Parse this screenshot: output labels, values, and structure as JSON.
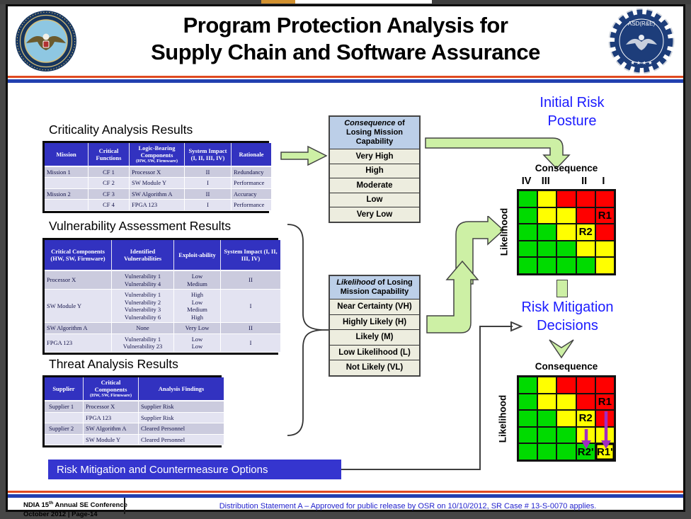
{
  "chrome": {
    "top_accent_color": "#D2912F"
  },
  "header": {
    "title_line1": "Program Protection Analysis for",
    "title_line2": "Supply Chain and Software Assurance",
    "right_logo_text": "ASD(R&E)"
  },
  "sections": {
    "criticality": {
      "heading": "Criticality Analysis Results",
      "table": {
        "headers": [
          "Mission",
          "Critical Functions",
          "Logic-Bearing Components",
          "System Impact (I, II, III, IV)",
          "Rationale"
        ],
        "header_subs": {
          "2": "(HW, SW, Firmware)"
        },
        "rows": [
          [
            "Mission 1",
            "CF 1",
            "Processor X",
            "II",
            "Redundancy"
          ],
          [
            "",
            "CF 2",
            "SW Module Y",
            "I",
            "Performance"
          ],
          [
            "Mission 2",
            "CF 3",
            "SW Algorithm A",
            "II",
            "Accuracy"
          ],
          [
            "",
            "CF 4",
            "FPGA 123",
            "I",
            "Performance"
          ]
        ]
      }
    },
    "vulnerability": {
      "heading": "Vulnerability Assessment Results",
      "table": {
        "headers": [
          "Critical Components (HW, SW, Firmware)",
          "Identified Vulnerabilities",
          "Exploit-ability",
          "System Impact (I, II, III, IV)"
        ],
        "rows": [
          [
            "Processor X",
            "Vulnerability 1\nVulnerability 4",
            "Low\nMedium",
            "II"
          ],
          [
            "SW Module Y",
            "Vulnerability 1\nVulnerability 2\nVulnerability 3\nVulnerability 6",
            "High\nLow\nMedium\nHigh",
            "I"
          ],
          [
            "SW Algorithm A",
            "None",
            "Very Low",
            "II"
          ],
          [
            "FPGA 123",
            "Vulnerability 1\nVulnerability 23",
            "Low\nLow",
            "I"
          ]
        ]
      }
    },
    "threat": {
      "heading": "Threat Analysis Results",
      "table": {
        "headers": [
          "Supplier",
          "Critical Components",
          "Analysis Findings"
        ],
        "header_subs": {
          "1": "(HW, SW, Firmware)"
        },
        "rows": [
          [
            "Supplier 1",
            "Processor X",
            "Supplier Risk"
          ],
          [
            "",
            "FPGA 123",
            "Supplier Risk"
          ],
          [
            "Supplier 2",
            "SW Algorithm A",
            "Cleared Personnel"
          ],
          [
            "",
            "SW Module Y",
            "Cleared Personnel"
          ]
        ]
      }
    }
  },
  "consequence_box": {
    "header_italic": "Consequence",
    "header_rest": " of Losing Mission Capability",
    "rows": [
      "Very High",
      "High",
      "Moderate",
      "Low",
      "Very Low"
    ]
  },
  "likelihood_box": {
    "header_italic": "Likelihood",
    "header_rest": " of Losing Mission Capability",
    "rows": [
      "Near Certainty (VH)",
      "Highly Likely (H)",
      "Likely (M)",
      "Low Likelihood (L)",
      "Not Likely (VL)"
    ]
  },
  "flow_labels": {
    "initial_risk_line1": "Initial Risk",
    "initial_risk_line2": "Posture",
    "mitigation_line1": "Risk Mitigation",
    "mitigation_line2": "Decisions"
  },
  "matrices": {
    "initial": {
      "consequence_label": "Consequence",
      "likelihood_label": "Likelihood",
      "col_labels": [
        "IV",
        "III",
        "",
        "II",
        "I"
      ],
      "cells": [
        [
          "G",
          "Y",
          "R",
          "R",
          "R"
        ],
        [
          "G",
          "Y",
          "Y",
          "R",
          "R"
        ],
        [
          "G",
          "G",
          "Y",
          "Y",
          "R"
        ],
        [
          "G",
          "G",
          "G",
          "Y",
          "Y"
        ],
        [
          "G",
          "G",
          "G",
          "G",
          "Y"
        ]
      ],
      "markers": [
        {
          "row": 1,
          "col": 4,
          "text": "R1"
        },
        {
          "row": 2,
          "col": 3,
          "text": "R2"
        }
      ]
    },
    "mitigated": {
      "consequence_label": "Consequence",
      "likelihood_label": "Likelihood",
      "cells": [
        [
          "G",
          "Y",
          "R",
          "R",
          "R"
        ],
        [
          "G",
          "Y",
          "Y",
          "R",
          "R"
        ],
        [
          "G",
          "G",
          "Y",
          "Y",
          "R"
        ],
        [
          "G",
          "G",
          "G",
          "Y",
          "Y"
        ],
        [
          "G",
          "G",
          "G",
          "G",
          "Y"
        ]
      ],
      "markers": [
        {
          "row": 1,
          "col": 4,
          "text": "R1"
        },
        {
          "row": 2,
          "col": 3,
          "text": "R2"
        },
        {
          "row": 4,
          "col": 3,
          "text": "R2'"
        },
        {
          "row": 4,
          "col": 4,
          "text": "R1'",
          "box": true
        }
      ],
      "mitigation_arrows": [
        {
          "from": "R2",
          "to": "R2'"
        },
        {
          "from": "R1",
          "to": "R1'"
        }
      ]
    }
  },
  "banner": {
    "label": "Risk Mitigation and Countermeasure Options"
  },
  "footer": {
    "conf_pre": "NDIA 15",
    "conf_sup": "th",
    "conf_post": " Annual SE Conference",
    "date_page": "October  2012 | Page-14",
    "distribution": "Distribution Statement A – Approved for public release by OSR on 10/10/2012, SR Case # 13-S-0070 applies."
  },
  "colors": {
    "risk_green": "#00DB00",
    "risk_yellow": "#FFFF00",
    "risk_red": "#FF0000",
    "arrow_green": "#CDF0A5",
    "mitigation_purple": "#A12CC0",
    "table_header_blue": "#3232C0",
    "banner_blue": "#3535CF",
    "label_blue": "#1B1BFF",
    "stripe_red": "#E04A20",
    "stripe_blue": "#2240B0",
    "box_header_blue": "#BCCFE8",
    "box_row_beige": "#EDEDDF"
  }
}
